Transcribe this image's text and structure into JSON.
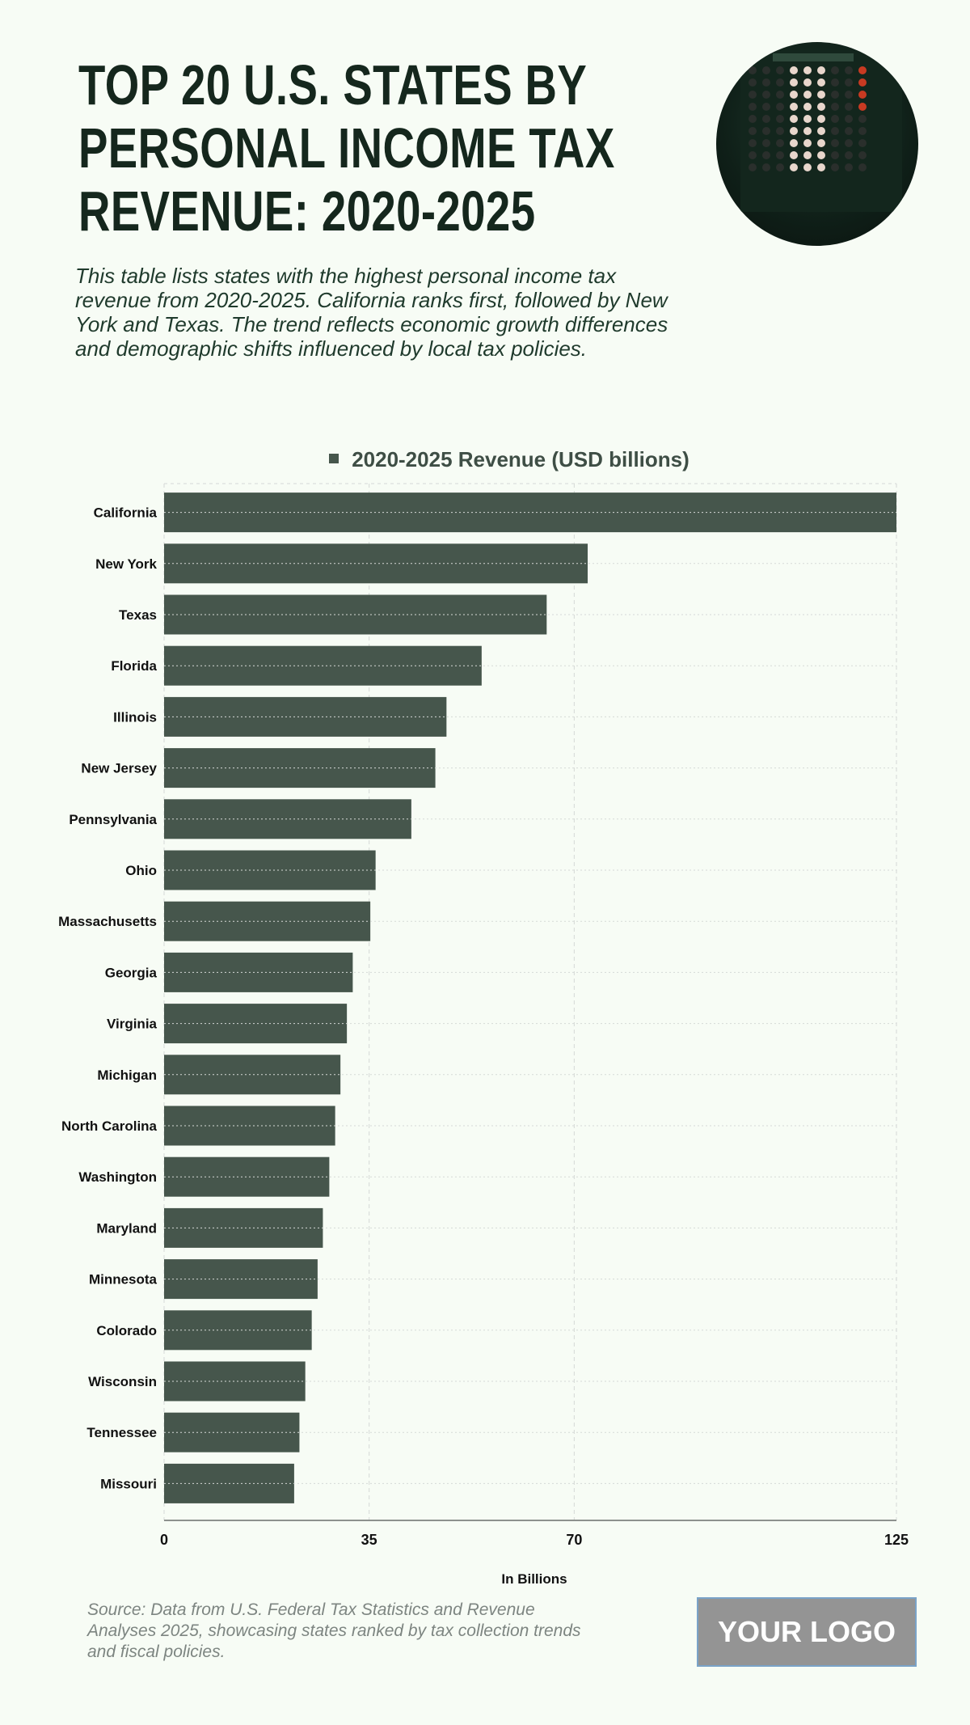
{
  "header": {
    "title_lines": [
      "TOP 20 U.S. STATES BY",
      "PERSONAL INCOME TAX",
      "REVENUE: 2020-2025"
    ],
    "description": "This table lists states with the highest personal income tax revenue from 2020-2025. California ranks first, followed by New York and Texas. The trend reflects economic growth differences and demographic shifts influenced by local tax policies."
  },
  "footer": {
    "source": "Source: Data from U.S. Federal Tax Statistics and Revenue Analyses 2025, showcasing states ranked by tax collection trends and fiscal policies.",
    "logo": "YOUR LOGO"
  },
  "colors": {
    "bar": "#46564c",
    "background": "#f7fcf5"
  },
  "chart_data": {
    "type": "bar",
    "orientation": "horizontal",
    "title": "",
    "legend": [
      "2020-2025 Revenue (USD billions)"
    ],
    "legend_position": "top",
    "xlabel": "In Billions",
    "ylabel": "",
    "xlim": [
      0,
      125
    ],
    "xticks": [
      0,
      35,
      70,
      125
    ],
    "grid": true,
    "categories": [
      "California",
      "New York",
      "Texas",
      "Florida",
      "Illinois",
      "New Jersey",
      "Pennsylvania",
      "Ohio",
      "Massachusetts",
      "Georgia",
      "Virginia",
      "Michigan",
      "North Carolina",
      "Washington",
      "Maryland",
      "Minnesota",
      "Colorado",
      "Wisconsin",
      "Tennessee",
      "Missouri"
    ],
    "series": [
      {
        "name": "2020-2025 Revenue (USD billions)",
        "values": [
          125,
          72.3,
          65.3,
          54.2,
          48.2,
          46.3,
          42.2,
          36.1,
          35.2,
          32.2,
          31.2,
          30.1,
          29.2,
          28.2,
          27.1,
          26.2,
          25.2,
          24.1,
          23.1,
          22.2
        ]
      }
    ]
  }
}
